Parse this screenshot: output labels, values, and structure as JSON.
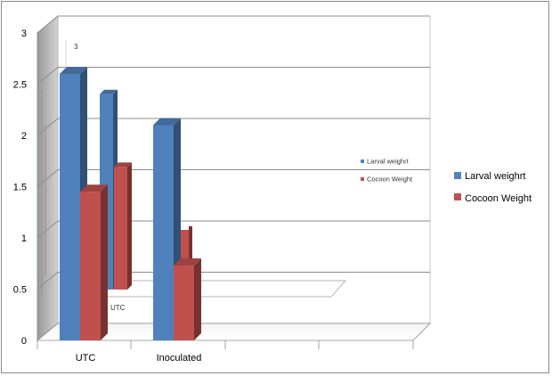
{
  "chart_data": {
    "type": "bar",
    "style": "3d-clustered-column",
    "categories": [
      "UTC",
      "Inoculated"
    ],
    "series": [
      {
        "name": "Larval weighrt",
        "values": [
          2.6,
          2.1
        ],
        "color": "#4f81bd"
      },
      {
        "name": "Cocoon Weight",
        "values": [
          1.45,
          0.73
        ],
        "color": "#c0504d"
      }
    ],
    "ylim": [
      0,
      3
    ],
    "yticks": [
      "0",
      "0.5",
      "1",
      "1.5",
      "2",
      "2.5",
      "3"
    ],
    "grid": true,
    "legend_placement": "right",
    "ghost_chart": {
      "tick_label": "3",
      "category_label": "UTC",
      "values": [
        2.55,
        1.6
      ],
      "legend_entries": [
        "Larval weighrt",
        "Cocoon Weight"
      ]
    }
  }
}
